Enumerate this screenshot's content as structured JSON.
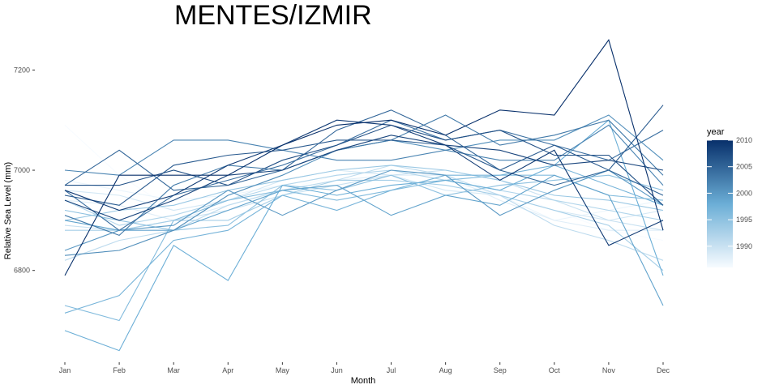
{
  "chart_data": {
    "type": "line",
    "title": "MENTES/IZMIR",
    "xlabel": "Month",
    "ylabel": "Relative Sea Level (mm)",
    "categories": [
      "Jan",
      "Feb",
      "Mar",
      "Apr",
      "May",
      "Jun",
      "Jul",
      "Aug",
      "Sep",
      "Oct",
      "Nov",
      "Dec"
    ],
    "ylim": [
      6620,
      7275
    ],
    "yticks": [
      6800,
      7000,
      7200
    ],
    "grid": false,
    "legend": {
      "title": "year",
      "position": "right",
      "type": "colorbar",
      "range": [
        1986,
        2010
      ],
      "ticks": [
        1990,
        1995,
        2000,
        2005,
        2010
      ],
      "color_low": "#f7fbff",
      "color_high": "#08306b"
    },
    "series": [
      {
        "year": 1986,
        "values": [
          7090,
          6990,
          6920,
          6940,
          6960,
          6990,
          7000,
          6990,
          6960,
          6920,
          6880,
          6860
        ]
      },
      {
        "year": 1987,
        "values": [
          6980,
          6960,
          6940,
          6950,
          6970,
          6990,
          7000,
          6980,
          6950,
          6900,
          6920,
          6940
        ]
      },
      {
        "year": 1988,
        "values": [
          6940,
          6930,
          6900,
          6930,
          6960,
          6980,
          6990,
          6990,
          6940,
          6900,
          6880,
          6880
        ]
      },
      {
        "year": 1989,
        "values": [
          6960,
          6950,
          6920,
          6940,
          6980,
          7000,
          6990,
          6960,
          6950,
          6920,
          6900,
          6920
        ]
      },
      {
        "year": 1990,
        "values": [
          6890,
          6880,
          6900,
          6920,
          6950,
          6970,
          6990,
          7000,
          6980,
          6940,
          6900,
          6880
        ]
      },
      {
        "year": 1991,
        "values": [
          6820,
          6860,
          6880,
          6930,
          6960,
          6980,
          7010,
          6990,
          6950,
          6890,
          6860,
          6820
        ]
      },
      {
        "year": 1992,
        "values": [
          6940,
          6890,
          6910,
          6940,
          6970,
          6990,
          7000,
          6980,
          6960,
          6940,
          6920,
          6900
        ]
      },
      {
        "year": 1993,
        "values": [
          6880,
          6880,
          6900,
          6900,
          6950,
          6980,
          6980,
          6970,
          6950,
          6920,
          6890,
          6800
        ]
      },
      {
        "year": 1994,
        "values": [
          6900,
          6920,
          6930,
          6960,
          6980,
          7000,
          7010,
          7000,
          6980,
          6950,
          6940,
          6920
        ]
      },
      {
        "year": 1995,
        "values": [
          6920,
          6900,
          6880,
          6890,
          6970,
          6960,
          6990,
          6950,
          6970,
          6980,
          6990,
          6960
        ]
      },
      {
        "year": 1996,
        "values": [
          6730,
          6700,
          6900,
          6940,
          6960,
          6940,
          6960,
          6980,
          6990,
          6990,
          6950,
          6940
        ]
      },
      {
        "year": 1997,
        "values": [
          6715,
          6750,
          6860,
          6880,
          6950,
          6920,
          6960,
          6990,
          6990,
          7010,
          6970,
          6930
        ]
      },
      {
        "year": 1998,
        "values": [
          6680,
          6640,
          6850,
          6780,
          6970,
          6950,
          6970,
          6980,
          6960,
          7010,
          7100,
          6790
        ]
      },
      {
        "year": 1999,
        "values": [
          6900,
          6880,
          6880,
          6920,
          6960,
          6970,
          6910,
          6950,
          6930,
          6990,
          6950,
          6730
        ]
      },
      {
        "year": 2000,
        "values": [
          6840,
          6880,
          6890,
          6960,
          6910,
          6960,
          7000,
          6990,
          6910,
          6960,
          7000,
          6930
        ]
      },
      {
        "year": 2001,
        "values": [
          6830,
          6840,
          6880,
          6950,
          6990,
          7040,
          7060,
          7040,
          7060,
          7060,
          7110,
          7020
        ]
      },
      {
        "year": 2002,
        "values": [
          7000,
          6990,
          7060,
          7060,
          7040,
          7020,
          7020,
          7040,
          7020,
          7020,
          7090,
          6970
        ]
      },
      {
        "year": 2003,
        "values": [
          6910,
          6870,
          6970,
          7010,
          7000,
          7040,
          7060,
          7110,
          7050,
          7070,
          7100,
          6990
        ]
      },
      {
        "year": 2004,
        "values": [
          6960,
          6880,
          6950,
          6980,
          7010,
          7050,
          7100,
          7060,
          7080,
          7050,
          7020,
          7080
        ]
      },
      {
        "year": 2005,
        "values": [
          6970,
          7040,
          6960,
          6970,
          7000,
          7080,
          7120,
          7070,
          7000,
          6970,
          7000,
          6950
        ]
      },
      {
        "year": 2006,
        "values": [
          6950,
          6930,
          7010,
          7030,
          7040,
          7060,
          7060,
          7050,
          7000,
          7050,
          7000,
          7130
        ]
      },
      {
        "year": 2007,
        "values": [
          6970,
          6970,
          7000,
          6970,
          7020,
          7050,
          7090,
          7060,
          7080,
          7030,
          7030,
          6930
        ]
      },
      {
        "year": 2008,
        "values": [
          6940,
          6900,
          6940,
          6990,
          7000,
          7040,
          7070,
          7050,
          7040,
          7010,
          7020,
          7000
        ]
      },
      {
        "year": 2009,
        "values": [
          6960,
          6920,
          6950,
          7010,
          7050,
          7100,
          7090,
          7050,
          6980,
          7040,
          6850,
          6900
        ]
      },
      {
        "year": 2010,
        "values": [
          6790,
          6990,
          6990,
          6990,
          7050,
          7090,
          7100,
          7070,
          7120,
          7110,
          7260,
          6880
        ]
      }
    ]
  }
}
